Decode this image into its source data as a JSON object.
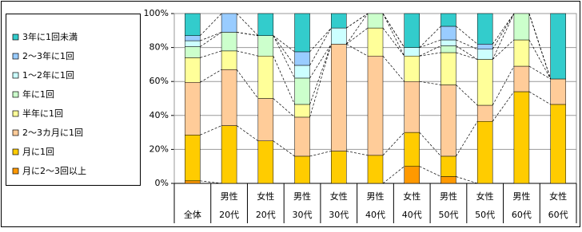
{
  "chart_data": {
    "type": "stacked_bar",
    "categories": [
      [
        "全体"
      ],
      [
        "男性",
        "20代"
      ],
      [
        "女性",
        "20代"
      ],
      [
        "男性",
        "30代"
      ],
      [
        "女性",
        "30代"
      ],
      [
        "男性",
        "40代"
      ],
      [
        "女性",
        "40代"
      ],
      [
        "男性",
        "50代"
      ],
      [
        "女性",
        "50代"
      ],
      [
        "男性",
        "60代"
      ],
      [
        "女性",
        "60代"
      ]
    ],
    "series": [
      {
        "name": "月に2～3回以上",
        "color": "#ff9900",
        "values": [
          1.5,
          0,
          0,
          0,
          0,
          0,
          10,
          4,
          0,
          0,
          0
        ]
      },
      {
        "name": "月に1回",
        "color": "#ffcc00",
        "values": [
          27,
          34,
          25,
          16,
          19,
          16.5,
          20,
          12,
          36.5,
          54,
          46.5
        ]
      },
      {
        "name": "2～3カ月に1回",
        "color": "#ffcc99",
        "values": [
          31,
          33,
          25,
          23,
          63,
          58.5,
          30,
          42,
          9.5,
          15,
          15
        ]
      },
      {
        "name": "半年に1回",
        "color": "#ffff99",
        "values": [
          14.5,
          11,
          25,
          7.5,
          0,
          16.5,
          15,
          19,
          27,
          15.5,
          0
        ]
      },
      {
        "name": "年に1回",
        "color": "#ccffcc",
        "values": [
          6.5,
          11,
          12,
          15.5,
          0,
          8.5,
          0,
          4,
          0,
          15.5,
          0
        ]
      },
      {
        "name": "1～2年に1回",
        "color": "#ccffff",
        "values": [
          3.5,
          0,
          0,
          7.5,
          9.5,
          0,
          5,
          3.5,
          6,
          0,
          0
        ]
      },
      {
        "name": "2～3年に1回",
        "color": "#99ccff",
        "values": [
          3,
          11,
          0,
          8,
          0,
          0,
          0,
          8,
          3,
          0,
          0
        ]
      },
      {
        "name": "3年に1回未満",
        "color": "#33cccc",
        "values": [
          13,
          0,
          13,
          22.5,
          8.5,
          0,
          20,
          7.5,
          18,
          0,
          38.5
        ]
      }
    ],
    "ylim": [
      0,
      100
    ],
    "yticks": [
      {
        "value": 0,
        "label": "0%"
      },
      {
        "value": 20,
        "label": "20%"
      },
      {
        "value": 40,
        "label": "40%"
      },
      {
        "value": 60,
        "label": "60%"
      },
      {
        "value": 80,
        "label": "80%"
      },
      {
        "value": 100,
        "label": "100%"
      }
    ],
    "grid": true,
    "legend": "left"
  }
}
